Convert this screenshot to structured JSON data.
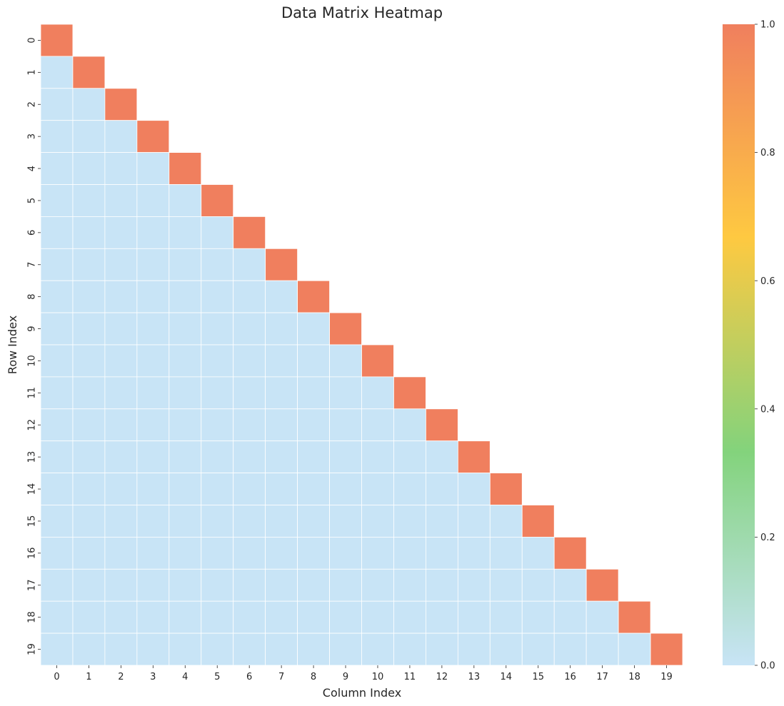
{
  "chart_data": {
    "type": "heatmap",
    "title": "Data Matrix Heatmap",
    "xlabel": "Column Index",
    "ylabel": "Row Index",
    "x_categories": [
      "0",
      "1",
      "2",
      "3",
      "4",
      "5",
      "6",
      "7",
      "8",
      "9",
      "10",
      "11",
      "12",
      "13",
      "14",
      "15",
      "16",
      "17",
      "18",
      "19"
    ],
    "y_categories": [
      "0",
      "1",
      "2",
      "3",
      "4",
      "5",
      "6",
      "7",
      "8",
      "9",
      "10",
      "11",
      "12",
      "13",
      "14",
      "15",
      "16",
      "17",
      "18",
      "19"
    ],
    "mask": "upper triangle above diagonal hidden",
    "diagonal_value": 1.0,
    "lower_triangle_value": 0.0,
    "colorbar": {
      "vmin": 0.0,
      "vmax": 1.0,
      "ticks": [
        "0.0",
        "0.2",
        "0.4",
        "0.6",
        "0.8",
        "1.0"
      ],
      "colors": [
        "#c8e4f6",
        "#83d37c",
        "#fec941",
        "#f07f5e"
      ]
    },
    "grid_line_color": "#ffffff"
  }
}
